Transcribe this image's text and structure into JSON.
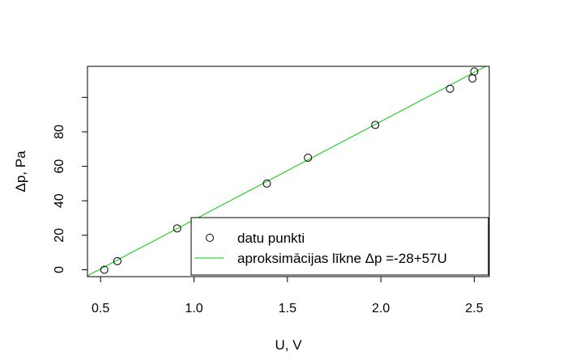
{
  "chart_data": {
    "type": "scatter",
    "xlabel": "U, V",
    "ylabel": "Δp, Pa",
    "xlim": [
      0.43,
      2.58
    ],
    "ylim": [
      -4,
      118
    ],
    "xticks": [
      {
        "value": 0.5,
        "label": "0.5"
      },
      {
        "value": 1.0,
        "label": "1.0"
      },
      {
        "value": 1.5,
        "label": "1.5"
      },
      {
        "value": 2.0,
        "label": "2.0"
      },
      {
        "value": 2.5,
        "label": "2.5"
      }
    ],
    "yticks": [
      {
        "value": 0,
        "label": "0"
      },
      {
        "value": 20,
        "label": "20"
      },
      {
        "value": 40,
        "label": "40"
      },
      {
        "value": 60,
        "label": "60"
      },
      {
        "value": 80,
        "label": "80"
      },
      {
        "value": 100,
        "label": ""
      }
    ],
    "series": [
      {
        "name": "datu punkti",
        "kind": "points",
        "color": "#000000",
        "points": [
          {
            "x": 0.52,
            "y": 0
          },
          {
            "x": 0.59,
            "y": 5
          },
          {
            "x": 0.91,
            "y": 24
          },
          {
            "x": 1.39,
            "y": 50
          },
          {
            "x": 1.61,
            "y": 65
          },
          {
            "x": 1.97,
            "y": 84
          },
          {
            "x": 2.37,
            "y": 105
          },
          {
            "x": 2.49,
            "y": 111
          },
          {
            "x": 2.5,
            "y": 115
          }
        ]
      },
      {
        "name": "aproksimācijas līkne Δp =-28+57U",
        "kind": "line",
        "color": "#00cc00",
        "intercept": -28,
        "slope": 57
      }
    ],
    "legend": {
      "position": "bottom-right",
      "entries": [
        {
          "label": "datu punkti",
          "symbol": "circle",
          "color": "#000000"
        },
        {
          "label": "aproksimācijas līkne Δp =-28+57U",
          "symbol": "line",
          "color": "#00cc00"
        }
      ]
    },
    "grid": false
  }
}
